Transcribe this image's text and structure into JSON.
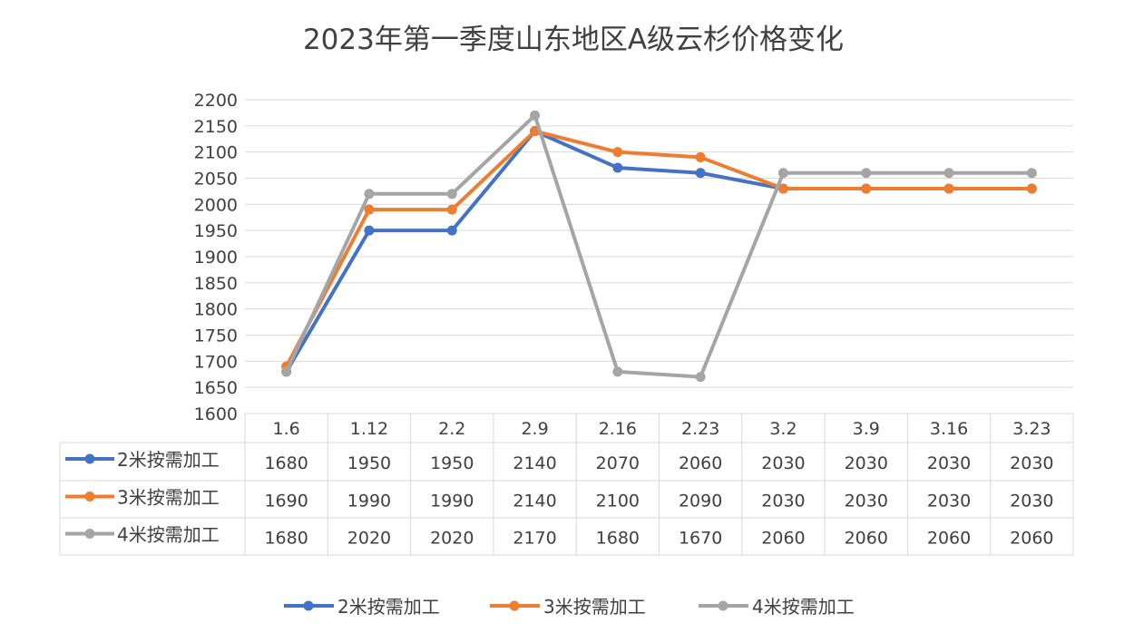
{
  "chart_data": {
    "type": "line",
    "title": "2023年第一季度山东地区A级云杉价格变化",
    "xlabel": "",
    "ylabel": "",
    "categories": [
      "1.6",
      "1.12",
      "2.2",
      "2.9",
      "2.16",
      "2.23",
      "3.2",
      "3.9",
      "3.16",
      "3.23"
    ],
    "ylim": [
      1600,
      2200
    ],
    "yticks": [
      1600,
      1650,
      1700,
      1750,
      1800,
      1850,
      1900,
      1950,
      2000,
      2050,
      2100,
      2150,
      2200
    ],
    "grid": true,
    "data_table": true,
    "legend_position": "bottom",
    "series": [
      {
        "name": "2米按需加工",
        "color": "#4472c4",
        "values": [
          1680,
          1950,
          1950,
          2140,
          2070,
          2060,
          2030,
          2030,
          2030,
          2030
        ]
      },
      {
        "name": "3米按需加工",
        "color": "#ed7d31",
        "values": [
          1690,
          1990,
          1990,
          2140,
          2100,
          2090,
          2030,
          2030,
          2030,
          2030
        ]
      },
      {
        "name": "4米按需加工",
        "color": "#a5a5a5",
        "values": [
          1680,
          2020,
          2020,
          2170,
          1680,
          1670,
          2060,
          2060,
          2060,
          2060
        ]
      }
    ]
  }
}
